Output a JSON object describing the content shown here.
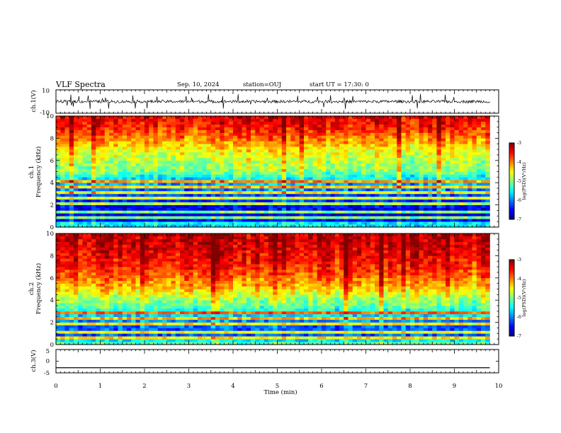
{
  "header": {
    "title": "VLF Spectra",
    "date": "Sep. 10, 2024",
    "station": "station=OUJ",
    "start": "start UT =  17:30: 0"
  },
  "colors": {
    "colormap": [
      "#000080",
      "#0000ff",
      "#0080ff",
      "#00ffff",
      "#80ff80",
      "#ffff00",
      "#ff8000",
      "#ff0000",
      "#800000"
    ],
    "trace": "#000000"
  },
  "chart_data": {
    "type": "heatmap",
    "xlabel": "Time (min)",
    "xlim": [
      0,
      10
    ],
    "xticks": [
      "0",
      "1",
      "2",
      "3",
      "4",
      "5",
      "6",
      "7",
      "8",
      "9",
      "10"
    ],
    "data_end_min": 9.8,
    "panels": [
      {
        "id": "ch1_waveform",
        "type": "line",
        "ylabel": "ch.1(V)",
        "ylim": [
          -10,
          10
        ],
        "yticks": [
          "10",
          "-10"
        ],
        "baseline_v": 0.0,
        "noise_amplitude_v": 1.2,
        "spike_amplitude_v": 5.0
      },
      {
        "id": "ch1_spectrogram",
        "type": "heatmap",
        "title_line": "ch.1",
        "ylabel": "Frequency (kHz)",
        "ylim": [
          0,
          10
        ],
        "yticks": [
          "0",
          "2",
          "4",
          "6",
          "8",
          "10"
        ],
        "colorbar": {
          "label": "log(PSD)(V²/Hz)",
          "range": [
            -7,
            -3
          ],
          "ticks": [
            "-3",
            "-4",
            "-5",
            "-6",
            "-7"
          ]
        },
        "freq_profile_log_psd": [
          {
            "f": 0.0,
            "v": -5.8
          },
          {
            "f": 0.3,
            "v": -5.2
          },
          {
            "f": 0.6,
            "v": -6.5
          },
          {
            "f": 1.0,
            "v": -6.7
          },
          {
            "f": 1.5,
            "v": -6.6
          },
          {
            "f": 2.0,
            "v": -6.5
          },
          {
            "f": 2.5,
            "v": -6.3
          },
          {
            "f": 3.0,
            "v": -6.2
          },
          {
            "f": 3.5,
            "v": -6.0
          },
          {
            "f": 4.0,
            "v": -5.8
          },
          {
            "f": 4.5,
            "v": -5.5
          },
          {
            "f": 5.0,
            "v": -5.0
          },
          {
            "f": 6.0,
            "v": -4.8
          },
          {
            "f": 7.0,
            "v": -4.5
          },
          {
            "f": 8.0,
            "v": -4.0
          },
          {
            "f": 9.0,
            "v": -3.6
          },
          {
            "f": 10.0,
            "v": -3.4
          }
        ],
        "line_frequencies_khz": [
          0.8,
          1.3,
          2.2,
          2.5,
          3.0,
          3.5,
          4.2
        ]
      },
      {
        "id": "ch2_spectrogram",
        "type": "heatmap",
        "title_line": "ch.2",
        "ylabel": "Frequency (kHz)",
        "ylim": [
          0,
          10
        ],
        "yticks": [
          "0",
          "2",
          "4",
          "6",
          "8",
          "10"
        ],
        "colorbar": {
          "label": "log(PSD)(V²/Hz)",
          "range": [
            -7,
            -3
          ],
          "ticks": [
            "-3",
            "-4",
            "-5",
            "-6",
            "-7"
          ]
        },
        "freq_profile_log_psd": [
          {
            "f": 0.0,
            "v": -5.0
          },
          {
            "f": 0.3,
            "v": -5.4
          },
          {
            "f": 0.6,
            "v": -6.0
          },
          {
            "f": 1.0,
            "v": -6.2
          },
          {
            "f": 1.5,
            "v": -6.1
          },
          {
            "f": 2.0,
            "v": -6.0
          },
          {
            "f": 2.5,
            "v": -5.7
          },
          {
            "f": 3.0,
            "v": -5.4
          },
          {
            "f": 3.5,
            "v": -5.1
          },
          {
            "f": 4.0,
            "v": -4.9
          },
          {
            "f": 4.5,
            "v": -4.6
          },
          {
            "f": 5.0,
            "v": -4.3
          },
          {
            "f": 6.0,
            "v": -3.9
          },
          {
            "f": 7.0,
            "v": -3.6
          },
          {
            "f": 8.0,
            "v": -3.4
          },
          {
            "f": 9.0,
            "v": -3.3
          },
          {
            "f": 10.0,
            "v": -3.2
          }
        ],
        "line_frequencies_khz": [
          0.6,
          1.2,
          1.9,
          2.3,
          2.8
        ]
      },
      {
        "id": "ch3_waveform",
        "type": "line",
        "ylabel": "ch.3(V)",
        "ylim": [
          -5,
          5
        ],
        "yticks": [
          "5",
          "0",
          "-5"
        ],
        "baseline_v": -2.8,
        "noise_amplitude_v": 0.0,
        "spike_amplitude_v": 0.0
      }
    ]
  }
}
